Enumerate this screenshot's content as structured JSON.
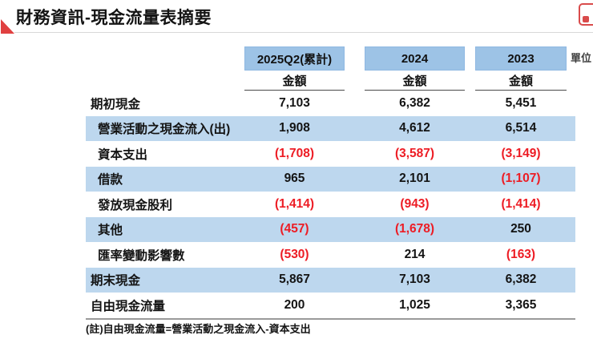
{
  "page": {
    "title": "財務資訊-現金流量表摘要",
    "unit_label": "單位",
    "note": "(註)自由現金流量=營業活動之現金流入-資本支出"
  },
  "colors": {
    "header_blue": "#9dc3e6",
    "row_stripe_blue": "#bdd7ee",
    "negative_red": "#ed1c24",
    "accent_red": "#e04040"
  },
  "table": {
    "columns": [
      {
        "label": "2025Q2(累計)",
        "sub": "金額"
      },
      {
        "label": "2024",
        "sub": "金額"
      },
      {
        "label": "2023",
        "sub": "金額"
      }
    ],
    "rows": [
      {
        "label": "期初現金",
        "indent": false,
        "values": [
          "7,103",
          "6,382",
          "5,451"
        ]
      },
      {
        "label": "營業活動之現金流入(出)",
        "indent": true,
        "values": [
          "1,908",
          "4,612",
          "6,514"
        ]
      },
      {
        "label": "資本支出",
        "indent": true,
        "values": [
          "(1,708)",
          "(3,587)",
          "(3,149)"
        ]
      },
      {
        "label": "借款",
        "indent": true,
        "values": [
          "965",
          "2,101",
          "(1,107)"
        ]
      },
      {
        "label": "發放現金股利",
        "indent": true,
        "values": [
          "(1,414)",
          "(943)",
          "(1,414)"
        ]
      },
      {
        "label": "其他",
        "indent": true,
        "values": [
          "(457)",
          "(1,678)",
          "250"
        ]
      },
      {
        "label": "匯率變動影響數",
        "indent": true,
        "values": [
          "(530)",
          "214",
          "(163)"
        ]
      },
      {
        "label": "期末現金",
        "indent": false,
        "values": [
          "5,867",
          "7,103",
          "6,382"
        ]
      },
      {
        "label": "自由現金流量",
        "indent": false,
        "values": [
          "200",
          "1,025",
          "3,365"
        ]
      }
    ]
  },
  "chart_data": {
    "type": "table",
    "title": "財務資訊-現金流量表摘要",
    "categories": [
      "2025Q2(累計)",
      "2024",
      "2023"
    ],
    "series": [
      {
        "name": "期初現金",
        "values": [
          7103,
          6382,
          5451
        ]
      },
      {
        "name": "營業活動之現金流入(出)",
        "values": [
          1908,
          4612,
          6514
        ]
      },
      {
        "name": "資本支出",
        "values": [
          -1708,
          -3587,
          -3149
        ]
      },
      {
        "name": "借款",
        "values": [
          965,
          2101,
          -1107
        ]
      },
      {
        "name": "發放現金股利",
        "values": [
          -1414,
          -943,
          -1414
        ]
      },
      {
        "name": "其他",
        "values": [
          -457,
          -1678,
          250
        ]
      },
      {
        "name": "匯率變動影響數",
        "values": [
          -530,
          214,
          -163
        ]
      },
      {
        "name": "期末現金",
        "values": [
          5867,
          7103,
          6382
        ]
      },
      {
        "name": "自由現金流量",
        "values": [
          200,
          1025,
          3365
        ]
      }
    ]
  }
}
